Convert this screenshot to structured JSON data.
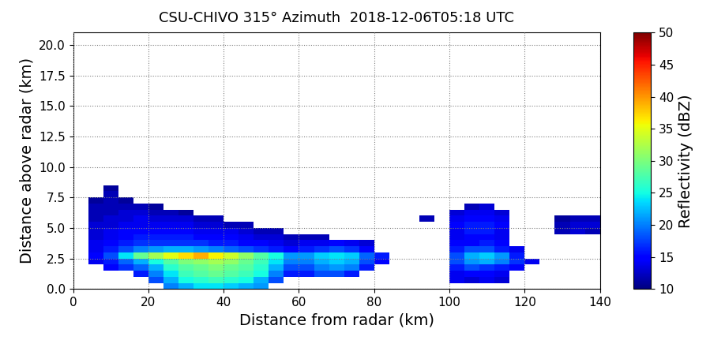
{
  "chart_data": {
    "type": "heatmap",
    "title": "CSU-CHIVO 315° Azimuth  2018-12-06T05:18 UTC",
    "x_label": "Distance from radar (km)",
    "y_label": "Distance above radar (km)",
    "xlim": [
      0,
      140
    ],
    "xticks": [
      0,
      20,
      40,
      60,
      80,
      100,
      120,
      140
    ],
    "ylim": [
      0,
      21
    ],
    "yticks": [
      {
        "value": 0,
        "label": "0.0"
      },
      {
        "value": 2.5,
        "label": "2.5"
      },
      {
        "value": 5,
        "label": "5.0"
      },
      {
        "value": 7.5,
        "label": "7.5"
      },
      {
        "value": 10,
        "label": "10.0"
      },
      {
        "value": 12.5,
        "label": "12.5"
      },
      {
        "value": 15,
        "label": "15.0"
      },
      {
        "value": 17.5,
        "label": "17.5"
      },
      {
        "value": 20,
        "label": "20.0"
      }
    ],
    "grid": true,
    "x_edges": [
      0,
      4,
      8,
      12,
      16,
      20,
      24,
      28,
      32,
      36,
      40,
      44,
      48,
      52,
      56,
      60,
      64,
      68,
      72,
      76,
      80,
      84,
      88,
      92,
      96,
      100,
      104,
      108,
      112,
      116,
      120,
      124,
      128,
      132,
      136,
      140
    ],
    "y_edges": [
      0,
      0.5,
      1,
      1.5,
      2,
      2.5,
      3,
      3.5,
      4,
      4.5,
      5,
      5.5,
      6,
      6.5,
      7,
      7.5,
      8,
      8.5
    ],
    "cells": [
      [
        null,
        null,
        null,
        null,
        null,
        null,
        20,
        22,
        24,
        24,
        23,
        22,
        21,
        null,
        null,
        null,
        null,
        null,
        null,
        null,
        null,
        null,
        null,
        null,
        null,
        null,
        null,
        null,
        null,
        null,
        null,
        null,
        null,
        null,
        null
      ],
      [
        null,
        null,
        null,
        null,
        null,
        18,
        22,
        25,
        26,
        27,
        26,
        25,
        22,
        18,
        null,
        null,
        null,
        null,
        null,
        null,
        null,
        null,
        null,
        null,
        null,
        14,
        13,
        14,
        13,
        null,
        null,
        null,
        null,
        null,
        null
      ],
      [
        null,
        null,
        null,
        null,
        16,
        20,
        24,
        27,
        28,
        29,
        28,
        27,
        25,
        20,
        16,
        16,
        18,
        18,
        16,
        null,
        null,
        null,
        null,
        null,
        null,
        14,
        15,
        15,
        14,
        null,
        null,
        null,
        null,
        null,
        null
      ],
      [
        null,
        null,
        15,
        17,
        19,
        22,
        26,
        28,
        29,
        30,
        29,
        28,
        26,
        22,
        18,
        18,
        20,
        21,
        20,
        16,
        null,
        null,
        null,
        null,
        null,
        16,
        18,
        17,
        16,
        15,
        null,
        null,
        null,
        null,
        null
      ],
      [
        null,
        14,
        16,
        19,
        22,
        25,
        28,
        30,
        31,
        32,
        31,
        29,
        27,
        24,
        20,
        20,
        22,
        23,
        22,
        18,
        15,
        null,
        null,
        null,
        null,
        18,
        21,
        22,
        20,
        17,
        14,
        null,
        null,
        null,
        null
      ],
      [
        null,
        15,
        18,
        24,
        29,
        32,
        35,
        37,
        39,
        36,
        34,
        31,
        28,
        25,
        21,
        21,
        23,
        24,
        23,
        19,
        16,
        null,
        null,
        null,
        null,
        18,
        22,
        23,
        21,
        16,
        null,
        null,
        null,
        null,
        null
      ],
      [
        null,
        14,
        16,
        18,
        20,
        21,
        22,
        22,
        21,
        20,
        19,
        18,
        17,
        16,
        15,
        16,
        17,
        18,
        17,
        15,
        null,
        null,
        null,
        null,
        null,
        16,
        18,
        18,
        16,
        14,
        null,
        null,
        null,
        null,
        null
      ],
      [
        null,
        14,
        15,
        16,
        17,
        17,
        17,
        17,
        17,
        16,
        16,
        15,
        15,
        14,
        13,
        14,
        14,
        15,
        14,
        13,
        null,
        null,
        null,
        null,
        null,
        15,
        15,
        16,
        15,
        null,
        null,
        null,
        null,
        null,
        null
      ],
      [
        null,
        13,
        14,
        15,
        16,
        16,
        16,
        16,
        15,
        15,
        15,
        14,
        13,
        13,
        12,
        12,
        12,
        null,
        null,
        null,
        null,
        null,
        null,
        null,
        null,
        14,
        15,
        15,
        14,
        null,
        null,
        null,
        null,
        null,
        null
      ],
      [
        null,
        13,
        14,
        15,
        15,
        15,
        15,
        15,
        14,
        14,
        14,
        13,
        12,
        12,
        null,
        null,
        null,
        null,
        null,
        null,
        null,
        null,
        null,
        null,
        null,
        14,
        16,
        16,
        14,
        null,
        null,
        null,
        12,
        13,
        12
      ],
      [
        null,
        13,
        13,
        14,
        14,
        14,
        14,
        14,
        13,
        13,
        12,
        12,
        null,
        null,
        null,
        null,
        null,
        null,
        null,
        null,
        null,
        null,
        null,
        null,
        null,
        15,
        16,
        16,
        15,
        null,
        null,
        null,
        12,
        13,
        13
      ],
      [
        null,
        12,
        13,
        13,
        14,
        13,
        13,
        13,
        12,
        12,
        null,
        null,
        null,
        null,
        null,
        null,
        null,
        null,
        null,
        null,
        null,
        null,
        null,
        12,
        null,
        14,
        15,
        15,
        14,
        null,
        null,
        null,
        11,
        12,
        12
      ],
      [
        null,
        12,
        12,
        13,
        13,
        12,
        12,
        11,
        null,
        null,
        null,
        null,
        null,
        null,
        null,
        null,
        null,
        null,
        null,
        null,
        null,
        null,
        null,
        null,
        null,
        13,
        14,
        14,
        13,
        null,
        null,
        null,
        null,
        null,
        null
      ],
      [
        null,
        12,
        12,
        12,
        12,
        11,
        null,
        null,
        null,
        null,
        null,
        null,
        null,
        null,
        null,
        null,
        null,
        null,
        null,
        null,
        null,
        null,
        null,
        null,
        null,
        null,
        12,
        13,
        null,
        null,
        null,
        null,
        null,
        null,
        null
      ],
      [
        null,
        11,
        12,
        11,
        null,
        null,
        null,
        null,
        null,
        null,
        null,
        null,
        null,
        null,
        null,
        null,
        null,
        null,
        null,
        null,
        null,
        null,
        null,
        null,
        null,
        null,
        null,
        null,
        null,
        null,
        null,
        null,
        null,
        null,
        null
      ],
      [
        null,
        null,
        12,
        null,
        null,
        null,
        null,
        null,
        null,
        null,
        null,
        null,
        null,
        null,
        null,
        null,
        null,
        null,
        null,
        null,
        null,
        null,
        null,
        null,
        null,
        null,
        null,
        null,
        null,
        null,
        null,
        null,
        null,
        null,
        null
      ],
      [
        null,
        null,
        11,
        null,
        null,
        null,
        null,
        null,
        null,
        null,
        null,
        null,
        null,
        null,
        null,
        null,
        null,
        null,
        null,
        null,
        null,
        null,
        null,
        null,
        null,
        null,
        null,
        null,
        null,
        null,
        null,
        null,
        null,
        null,
        null
      ]
    ],
    "colorbar": {
      "range": [
        10,
        50
      ],
      "ticks": [
        10,
        15,
        20,
        25,
        30,
        35,
        40,
        45,
        50
      ],
      "label": "Reflectivity (dBZ)"
    }
  }
}
